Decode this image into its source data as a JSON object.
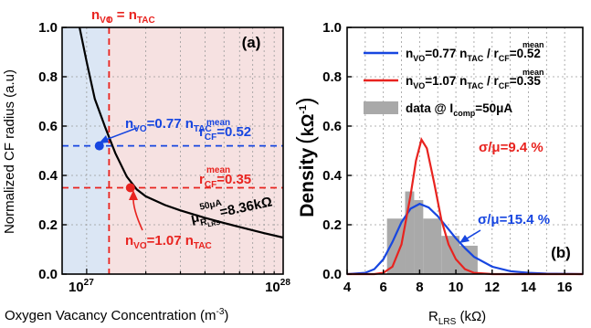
{
  "chart_data": [
    {
      "panel": "(a)",
      "type": "line",
      "xlabel": "Oxygen Vacancy Concentration (m",
      "xlabel_sup": "-3",
      "xlabel_end": ")",
      "ylabel": "Normalized CF radius (a.u)",
      "x_scale": "log",
      "xlim": [
        7.5e+26,
        1e+28
      ],
      "ylim": [
        0.0,
        1.0
      ],
      "x_ticks": [
        {
          "value": 1e+27,
          "base": "10",
          "exp": "27"
        },
        {
          "value": 1e+28,
          "base": "10",
          "exp": "28"
        }
      ],
      "y_ticks": [
        {
          "value": 0.0,
          "label": "0.0"
        },
        {
          "value": 0.2,
          "label": "0.2"
        },
        {
          "value": 0.4,
          "label": "0.4"
        },
        {
          "value": 0.6,
          "label": "0.6"
        },
        {
          "value": 0.8,
          "label": "0.8"
        },
        {
          "value": 1.0,
          "label": "1.0"
        }
      ],
      "grid": true,
      "curve_color": "#000000",
      "curve": {
        "x": [
          9.2e+26,
          1e+27,
          1.1e+27,
          1.25e+27,
          1.4e+27,
          1.6e+27,
          1.8e+27,
          2e+27,
          2.5e+27,
          3e+27,
          4e+27,
          5e+27,
          6e+27,
          8e+27,
          1e+28
        ],
        "y": [
          1.0,
          0.86,
          0.71,
          0.59,
          0.49,
          0.395,
          0.343,
          0.315,
          0.28,
          0.258,
          0.228,
          0.207,
          0.191,
          0.166,
          0.148
        ]
      },
      "regions": [
        {
          "name": "blue-region",
          "from": 7.5e+26,
          "to": 1.3e+27,
          "color": "#dbe6f4"
        },
        {
          "name": "red-region",
          "from": 1.3e+27,
          "to": 1e+28,
          "color": "#f6e1e1"
        }
      ],
      "vline": {
        "x": 1.3e+27,
        "color": "#e8231f",
        "label_prefix": "n",
        "label_sub1": "VO",
        "label_mid": " = n",
        "label_sub2": "TAC"
      },
      "hlines": [
        {
          "y": 0.52,
          "color": "#1746e0",
          "label_base": "r",
          "label_sub": "CF",
          "label_sup": "mean",
          "label_value": "=0.52"
        },
        {
          "y": 0.35,
          "color": "#e8231f",
          "label_base": "r",
          "label_sub": "CF",
          "label_sup": "mean",
          "label_value": "=0.35"
        }
      ],
      "points": [
        {
          "x": 1.16e+27,
          "y": 0.52,
          "color": "#1746e0"
        },
        {
          "x": 1.67e+27,
          "y": 0.35,
          "color": "#e8231f"
        }
      ],
      "annotations": [
        {
          "name": "blue-annotation",
          "color": "#1746e0",
          "base": "n",
          "sub": "VO",
          "value": "=0.77 n",
          "sub2": "TAC"
        },
        {
          "name": "red-annotation",
          "color": "#e8231f",
          "base": "n",
          "sub": "VO",
          "value": "=1.07 n",
          "sub2": "TAC"
        }
      ],
      "mu_label": {
        "base": "μ",
        "sup": "50μA",
        "sub": "R",
        "subsub": "LRS",
        "value": "=8.36kΩ"
      }
    },
    {
      "panel": "(b)",
      "type": "bar",
      "xlabel": "R",
      "xlabel_sub": "LRS",
      "xlabel_unit": " (kΩ)",
      "ylabel": "Density",
      "ylabel_unit": "kΩ",
      "ylabel_unit_sup": "-1",
      "xlim": [
        4,
        17
      ],
      "ylim": [
        0.0,
        1.0
      ],
      "x_ticks": [
        {
          "value": 4,
          "label": "4"
        },
        {
          "value": 6,
          "label": "6"
        },
        {
          "value": 8,
          "label": "8"
        },
        {
          "value": 10,
          "label": "10"
        },
        {
          "value": 12,
          "label": "12"
        },
        {
          "value": 14,
          "label": "14"
        },
        {
          "value": 16,
          "label": "16"
        }
      ],
      "y_ticks": [
        {
          "value": 0.0,
          "label": "0.0"
        },
        {
          "value": 0.2,
          "label": "0.2"
        },
        {
          "value": 0.4,
          "label": "0.4"
        },
        {
          "value": 0.6,
          "label": "0.6"
        },
        {
          "value": 0.8,
          "label": "0.8"
        },
        {
          "value": 1.0,
          "label": "1.0"
        }
      ],
      "grid": true,
      "histogram": {
        "color": "#a9a9a9",
        "bins": [
          {
            "x0": 6.2,
            "x1": 7.2,
            "y": 0.225
          },
          {
            "x0": 7.2,
            "x1": 7.7,
            "y": 0.335
          },
          {
            "x0": 7.7,
            "x1": 8.2,
            "y": 0.3
          },
          {
            "x0": 8.2,
            "x1": 9.2,
            "y": 0.225
          },
          {
            "x0": 9.2,
            "x1": 10.2,
            "y": 0.155
          },
          {
            "x0": 10.2,
            "x1": 11.2,
            "y": 0.115
          }
        ]
      },
      "series": [
        {
          "name_base": "n",
          "name_sub": "VO",
          "name_mid": "=0.77 n",
          "name_sub2": "TAC",
          "name_mid2": " / r",
          "name_sub3": "CF",
          "name_sup3": "mean",
          "name_end": "=0.52",
          "color": "#1746e0",
          "x": [
            4,
            5,
            5.5,
            6,
            6.5,
            7,
            7.5,
            8,
            8.5,
            9,
            9.5,
            10,
            10.5,
            11,
            12,
            13,
            14,
            15,
            16,
            17
          ],
          "y": [
            0.0,
            0.005,
            0.02,
            0.06,
            0.13,
            0.21,
            0.265,
            0.285,
            0.27,
            0.235,
            0.19,
            0.145,
            0.105,
            0.07,
            0.03,
            0.012,
            0.005,
            0.002,
            0.001,
            0.0
          ]
        },
        {
          "name_base": "n",
          "name_sub": "VO",
          "name_mid": "=1.07 n",
          "name_sub2": "TAC",
          "name_mid2": " / r",
          "name_sub3": "CF",
          "name_sup3": "mean",
          "name_end": "=0.35",
          "color": "#e8231f",
          "x": [
            4,
            5.5,
            6,
            6.5,
            7,
            7.5,
            7.8,
            8.1,
            8.4,
            8.8,
            9.2,
            9.6,
            10,
            10.5,
            11,
            12,
            17
          ],
          "y": [
            0.0,
            0.0,
            0.005,
            0.03,
            0.12,
            0.32,
            0.46,
            0.545,
            0.51,
            0.37,
            0.22,
            0.12,
            0.06,
            0.02,
            0.005,
            0.0,
            0.0
          ]
        }
      ],
      "legend_hist_label": {
        "prefix": "data @ I",
        "sub": "comp",
        "value": "=50μA"
      },
      "legend_position": "top-right",
      "annotations": [
        {
          "name": "sigma-red",
          "color": "#e8231f",
          "text": "σ/μ=9.4 %"
        },
        {
          "name": "sigma-blue",
          "color": "#1746e0",
          "text": "σ/μ=15.4 %"
        }
      ]
    }
  ]
}
